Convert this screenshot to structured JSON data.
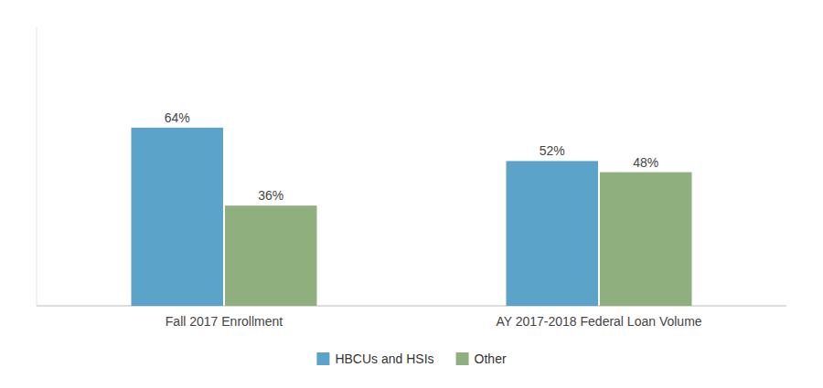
{
  "chart_data": {
    "type": "bar",
    "categories": [
      "Fall 2017 Enrollment",
      "AY 2017-2018 Federal Loan Volume"
    ],
    "series": [
      {
        "name": "HBCUs and HSIs",
        "color": "#5BA3C9",
        "values": [
          64,
          52
        ],
        "value_labels": [
          "64%",
          "52%"
        ]
      },
      {
        "name": "Other",
        "color": "#8FAF7E",
        "values": [
          36,
          48
        ],
        "value_labels": [
          "36%",
          "48%"
        ]
      }
    ],
    "ylim": [
      0,
      100
    ],
    "data_labels": true,
    "tick_labels": "x",
    "legend": "bottom"
  }
}
